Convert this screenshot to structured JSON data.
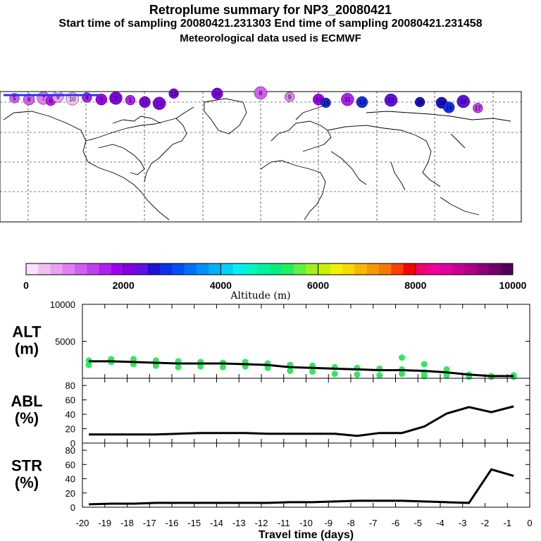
{
  "header": {
    "title": "Retroplume summary for NP3_20080421",
    "sampling": "Start time of sampling 20080421.231303     End time of sampling 20080421.231458",
    "met": "Meteorological data used is ECMWF"
  },
  "colorbar": {
    "colors": [
      "#f8e0f8",
      "#f0c0f0",
      "#e8a0f0",
      "#e080f0",
      "#d060f0",
      "#c040f0",
      "#b020f0",
      "#a000f0",
      "#8000e0",
      "#6010e0",
      "#2010d0",
      "#1030e8",
      "#0050f0",
      "#0070f8",
      "#0090f8",
      "#00b0f8",
      "#00d0f8",
      "#00f0f0",
      "#00f8c0",
      "#00f0a0",
      "#00f080",
      "#20f060",
      "#60f040",
      "#a0f020",
      "#c8f000",
      "#f0f000",
      "#f8d800",
      "#f8b800",
      "#f89800",
      "#f87800",
      "#f84000",
      "#f80000",
      "#f00070",
      "#f00098",
      "#e000a0",
      "#c80090",
      "#b00088",
      "#900078",
      "#700068",
      "#500058"
    ],
    "tick_labels": [
      "0",
      "2000",
      "4000",
      "6000",
      "8000",
      "10000"
    ],
    "label": "Altitude (m)"
  },
  "map": {
    "clusters": [
      {
        "lon": -170,
        "lat": 80,
        "alt": 1200,
        "label": "5"
      },
      {
        "lon": -160,
        "lat": 78,
        "alt": 1000,
        "label": "8"
      },
      {
        "lon": -150,
        "lat": 80,
        "alt": 800,
        "label": "7"
      },
      {
        "lon": -145,
        "lat": 76,
        "alt": 1500,
        "label": "6"
      },
      {
        "lon": -140,
        "lat": 82,
        "alt": 600,
        "label": "9"
      },
      {
        "lon": -130,
        "lat": 79,
        "alt": 400,
        "label": "10"
      },
      {
        "lon": -120,
        "lat": 81,
        "alt": 1600,
        "label": "4"
      },
      {
        "lon": -110,
        "lat": 78,
        "alt": 1900,
        "label": "3"
      },
      {
        "lon": -100,
        "lat": 80,
        "alt": 2100,
        "label": "2"
      },
      {
        "lon": -90,
        "lat": 77,
        "alt": 1700,
        "label": "1"
      },
      {
        "lon": -80,
        "lat": 74,
        "alt": 2100,
        "label": "11"
      },
      {
        "lon": -70,
        "lat": 72,
        "alt": 2050,
        "label": "12"
      },
      {
        "lon": -60,
        "lat": 87,
        "alt": 2150,
        "label": "13"
      },
      {
        "lon": -30,
        "lat": 87,
        "alt": 2200,
        "label": "14"
      },
      {
        "lon": 0,
        "lat": 88,
        "alt": 1000,
        "label": "8"
      },
      {
        "lon": 20,
        "lat": 82,
        "alt": 800,
        "label": "9"
      },
      {
        "lon": 40,
        "lat": 78,
        "alt": 1900,
        "label": "10"
      },
      {
        "lon": 60,
        "lat": 78,
        "alt": 1500,
        "label": "11"
      },
      {
        "lon": 45,
        "lat": 73,
        "alt": 2900,
        "label": "15"
      },
      {
        "lon": 70,
        "lat": 74,
        "alt": 2800,
        "label": "13"
      },
      {
        "lon": 90,
        "lat": 77,
        "alt": 2300,
        "label": "12"
      },
      {
        "lon": 110,
        "lat": 74,
        "alt": 2600,
        "label": "20"
      },
      {
        "lon": 125,
        "lat": 73,
        "alt": 2700,
        "label": "19"
      },
      {
        "lon": 140,
        "lat": 75,
        "alt": 2400,
        "label": "18"
      },
      {
        "lon": 150,
        "lat": 65,
        "alt": 1300,
        "label": "17"
      },
      {
        "lon": 130,
        "lat": 66,
        "alt": 2800,
        "label": "16"
      }
    ]
  },
  "chart_data": [
    {
      "type": "scatter",
      "name": "ALT",
      "ylabel": "ALT\n(m)",
      "ylim": [
        0,
        10000
      ],
      "yticks": [
        5000,
        10000
      ],
      "xlim": [
        -20,
        0
      ],
      "line_x": [
        -20,
        -19,
        -18,
        -17,
        -16,
        -15,
        -14,
        -13,
        -12,
        -11,
        -10,
        -9,
        -8,
        -7,
        -6,
        -5,
        -4,
        -3,
        -2,
        -1
      ],
      "line_y": [
        2300,
        2300,
        2200,
        2100,
        2000,
        2000,
        2000,
        1900,
        1800,
        1500,
        1400,
        1300,
        1200,
        1100,
        1100,
        1000,
        800,
        500,
        300,
        300
      ],
      "points": [
        [
          -20,
          2400
        ],
        [
          -20,
          1800
        ],
        [
          -19,
          2600
        ],
        [
          -19,
          2200
        ],
        [
          -18,
          2600
        ],
        [
          -18,
          1900
        ],
        [
          -17,
          2400
        ],
        [
          -17,
          1700
        ],
        [
          -16,
          2300
        ],
        [
          -16,
          1500
        ],
        [
          -15,
          2200
        ],
        [
          -15,
          1600
        ],
        [
          -14,
          2100
        ],
        [
          -14,
          1500
        ],
        [
          -13,
          2200
        ],
        [
          -13,
          1600
        ],
        [
          -12,
          2000
        ],
        [
          -12,
          1400
        ],
        [
          -11,
          1800
        ],
        [
          -11,
          1000
        ],
        [
          -10,
          1700
        ],
        [
          -10,
          900
        ],
        [
          -9,
          1500
        ],
        [
          -9,
          600
        ],
        [
          -8,
          1400
        ],
        [
          -8,
          500
        ],
        [
          -7,
          1300
        ],
        [
          -7,
          400
        ],
        [
          -6,
          1200
        ],
        [
          -6,
          600
        ],
        [
          -6,
          2800
        ],
        [
          -5,
          1900
        ],
        [
          -5,
          800
        ],
        [
          -5,
          300
        ],
        [
          -4,
          1200
        ],
        [
          -4,
          400
        ],
        [
          -3,
          500
        ],
        [
          -3,
          200
        ],
        [
          -2,
          300
        ],
        [
          -2,
          200
        ],
        [
          -1,
          400
        ],
        [
          -1,
          200
        ]
      ],
      "point_color": "#30e860"
    },
    {
      "type": "line",
      "name": "ABL",
      "ylabel": "ABL\n(%)",
      "ylim": [
        0,
        90
      ],
      "yticks": [
        0,
        20,
        40,
        60,
        80
      ],
      "xlim": [
        -20,
        0
      ],
      "x": [
        -20,
        -19,
        -18,
        -17,
        -16,
        -15,
        -14,
        -13,
        -12,
        -11,
        -10,
        -9,
        -8,
        -7,
        -6,
        -5,
        -4,
        -3,
        -2,
        -1
      ],
      "y": [
        12,
        12,
        12,
        12,
        13,
        14,
        14,
        14,
        13,
        13,
        13,
        13,
        10,
        14,
        14,
        23,
        41,
        50,
        43,
        51
      ]
    },
    {
      "type": "line",
      "name": "STR",
      "ylabel": "STR\n(%)",
      "ylim": [
        0,
        90
      ],
      "yticks": [
        0,
        20,
        40,
        60,
        80
      ],
      "xlim": [
        -20,
        0
      ],
      "xticks": [
        "-20",
        "-19",
        "-18",
        "-17",
        "-16",
        "-15",
        "-14",
        "-13",
        "-12",
        "-11",
        "-10",
        "-9",
        "-8",
        "-7",
        "-6",
        "-5",
        "-4",
        "-3",
        "-2",
        "-1",
        "0"
      ],
      "xlabel": "Travel time (days)",
      "x": [
        -20,
        -19,
        -18,
        -17,
        -16,
        -15,
        -14,
        -13,
        -12,
        -11,
        -10,
        -9,
        -8,
        -7,
        -6,
        -5,
        -4,
        -3,
        -2,
        -1
      ],
      "y": [
        4,
        5,
        5,
        6,
        6,
        6,
        6,
        6,
        6,
        7,
        7,
        8,
        9,
        9,
        9,
        8,
        7,
        6,
        53,
        44
      ]
    }
  ]
}
